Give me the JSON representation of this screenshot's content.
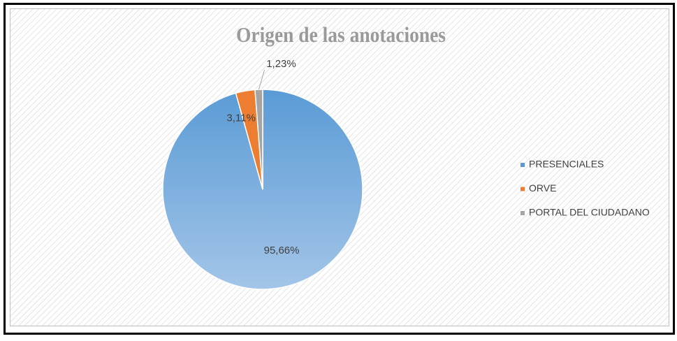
{
  "chart_data": {
    "type": "pie",
    "title": "Origen de las anotaciones",
    "categories": [
      "PRESENCIALES",
      "ORVE",
      "PORTAL DEL CIUDADANO"
    ],
    "values": [
      95.66,
      3.11,
      1.23
    ],
    "value_labels": [
      "95,66%",
      "3,11%",
      "1,23%"
    ],
    "colors": [
      "#5b9bd5",
      "#ed7d31",
      "#a5a5a5"
    ],
    "legend": "right"
  }
}
